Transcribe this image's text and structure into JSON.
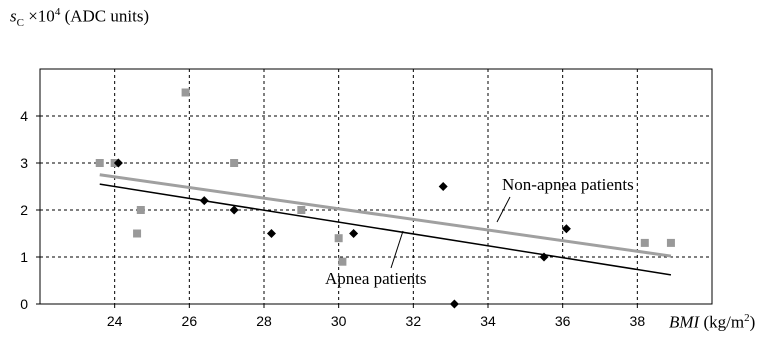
{
  "chart_data": {
    "type": "scatter",
    "title": "",
    "ylabel": {
      "var": "s",
      "sub": "C",
      "mult": "×10",
      "exp": "4",
      "unit": "(ADC units)"
    },
    "xlabel": {
      "var": "BMI",
      "unit": "(kg/m",
      "exp": "2",
      "close": ")"
    },
    "xlim": [
      22,
      40
    ],
    "ylim": [
      0,
      5
    ],
    "xticks": [
      24,
      26,
      28,
      30,
      32,
      34,
      36,
      38
    ],
    "yticks": [
      0,
      1,
      2,
      3,
      4
    ],
    "grid": true,
    "series": [
      {
        "name": "Apnea patients",
        "marker": "diamond",
        "color": "#000000",
        "points": [
          {
            "x": 24.1,
            "y": 3.0
          },
          {
            "x": 26.4,
            "y": 2.2
          },
          {
            "x": 27.2,
            "y": 2.0
          },
          {
            "x": 28.2,
            "y": 1.5
          },
          {
            "x": 30.4,
            "y": 1.5
          },
          {
            "x": 32.8,
            "y": 2.5
          },
          {
            "x": 33.1,
            "y": 0.0
          },
          {
            "x": 35.5,
            "y": 1.0
          },
          {
            "x": 36.1,
            "y": 1.6
          }
        ],
        "trend": [
          {
            "x": 23.6,
            "y": 2.55
          },
          {
            "x": 38.9,
            "y": 0.62
          }
        ],
        "trend_color": "#000000"
      },
      {
        "name": "Non-apnea patients",
        "marker": "square",
        "color": "#999999",
        "points": [
          {
            "x": 23.6,
            "y": 3.0
          },
          {
            "x": 24.0,
            "y": 3.0
          },
          {
            "x": 24.7,
            "y": 2.0
          },
          {
            "x": 24.6,
            "y": 1.5
          },
          {
            "x": 25.9,
            "y": 4.5
          },
          {
            "x": 27.2,
            "y": 3.0
          },
          {
            "x": 29.0,
            "y": 2.0
          },
          {
            "x": 30.0,
            "y": 1.4
          },
          {
            "x": 30.1,
            "y": 0.9
          },
          {
            "x": 38.2,
            "y": 1.3
          },
          {
            "x": 38.9,
            "y": 1.3
          }
        ],
        "trend": [
          {
            "x": 23.6,
            "y": 2.75
          },
          {
            "x": 38.9,
            "y": 1.02
          }
        ],
        "trend_color": "#a0a0a0"
      }
    ],
    "annotations": [
      {
        "text": "Non-apnea patients",
        "series": "Non-apnea patients"
      },
      {
        "text": "Apnea patients",
        "series": "Apnea patients"
      }
    ]
  }
}
